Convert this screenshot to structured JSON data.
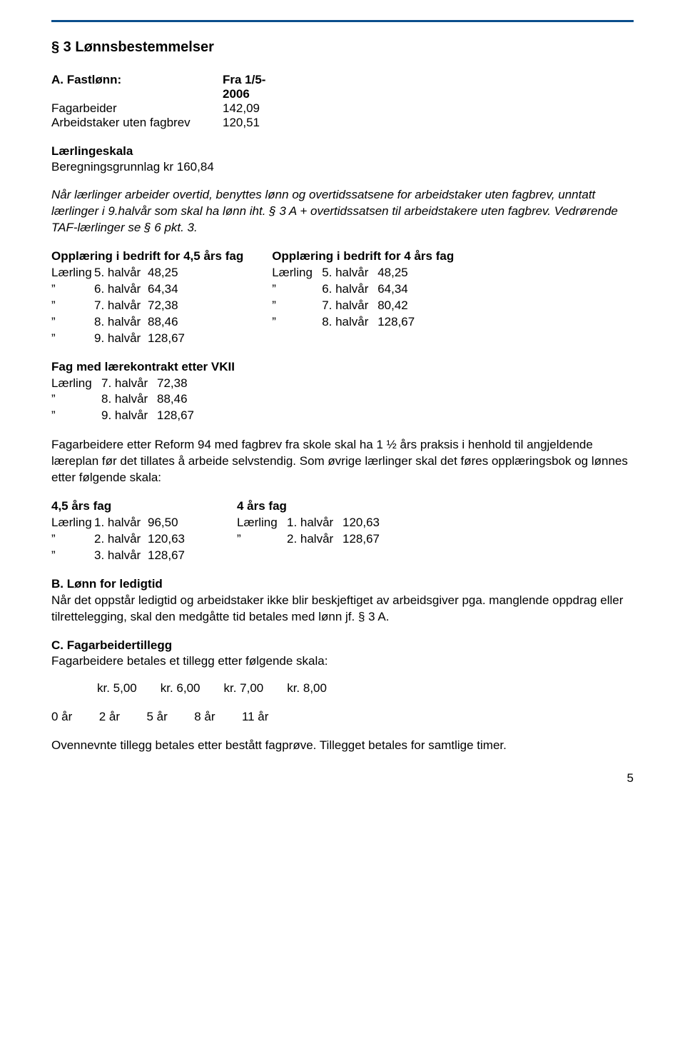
{
  "colors": {
    "rule": "#0a4e8c",
    "text": "#000000",
    "background": "#ffffff"
  },
  "typography": {
    "body_fontsize_pt": 13,
    "heading_fontsize_pt": 15,
    "font_family": "Arial"
  },
  "section_title": "§ 3 Lønnsbestemmelser",
  "fastlonn": {
    "heading_prefix": "A. Fastlønn:",
    "heading_suffix": "Fra 1/5-2006",
    "rows": [
      {
        "label": "Fagarbeider",
        "value": "142,09"
      },
      {
        "label": "Arbeidstaker uten fagbrev",
        "value": "120,51"
      }
    ]
  },
  "laerlingeskala": {
    "heading": "Lærlingeskala",
    "basis_line": "Beregningsgrunnlag kr 160,84"
  },
  "note_italic": "Når lærlinger arbeider overtid, benyttes lønn og overtidssatsene for arbeidstaker uten fagbrev, unntatt lærlinger i 9.halvår som skal ha lønn iht. § 3 A + overtidssatsen til arbeidstakere uten fagbrev. Vedrørende TAF-lærlinger se § 6 pkt. 3.",
  "training": {
    "left_heading": "Opplæring i bedrift for 4,5 års fag",
    "right_heading": "Opplæring i bedrift for 4 års fag",
    "left_rows": [
      {
        "p": "Lærling",
        "h": "5. halvår",
        "v": "48,25"
      },
      {
        "p": "”",
        "h": "6. halvår",
        "v": "64,34"
      },
      {
        "p": "”",
        "h": "7. halvår",
        "v": "72,38"
      },
      {
        "p": "”",
        "h": "8. halvår",
        "v": "88,46"
      },
      {
        "p": "”",
        "h": "9. halvår",
        "v": "128,67"
      }
    ],
    "right_rows": [
      {
        "p": "Lærling",
        "h": "5. halvår",
        "v": "48,25"
      },
      {
        "p": "”",
        "h": "6. halvår",
        "v": "64,34"
      },
      {
        "p": "”",
        "h": "7. halvår",
        "v": "80,42"
      },
      {
        "p": "”",
        "h": "8. halvår",
        "v": "128,67"
      }
    ]
  },
  "vkii": {
    "heading": "Fag med lærekontrakt etter VKII",
    "rows": [
      {
        "p": "Lærling",
        "h": "7. halvår",
        "v": "72,38"
      },
      {
        "p": "”",
        "h": "8. halvår",
        "v": "88,46"
      },
      {
        "p": "”",
        "h": "9. halvår",
        "v": "128,67"
      }
    ]
  },
  "reform94_para": "Fagarbeidere etter Reform 94 med fagbrev fra skole skal ha 1 ½ års praksis i henhold til angjeldende læreplan før det tillates å arbeide selvstendig. Som øvrige lærlinger skal det føres opplæringsbok og lønnes etter følgende skala:",
  "years_fag": {
    "left_heading": "4,5 års fag",
    "right_heading": "4 års fag",
    "left_rows": [
      {
        "p": "Lærling",
        "h": "1. halvår",
        "v": "96,50"
      },
      {
        "p": "”",
        "h": "2. halvår",
        "v": "120,63"
      },
      {
        "p": "”",
        "h": "3. halvår",
        "v": "128,67"
      }
    ],
    "right_rows": [
      {
        "p": "Lærling",
        "h": "1. halvår",
        "v": "120,63"
      },
      {
        "p": "”",
        "h": "2. halvår",
        "v": "128,67"
      }
    ]
  },
  "ledigtid": {
    "heading": "B. Lønn for ledigtid",
    "text": "Når det oppstår ledigtid og arbeidstaker ikke blir beskjeftiget av arbeidsgiver pga. manglende oppdrag eller tilrettelegging, skal den medgåtte tid betales med lønn jf. § 3 A."
  },
  "fagarbeidertillegg": {
    "heading": "C. Fagarbeidertillegg",
    "intro": "Fagarbeidere betales et tillegg etter følgende skala:",
    "amounts": [
      "kr. 5,00",
      "kr. 6,00",
      "kr. 7,00",
      "kr. 8,00"
    ],
    "years": [
      "0 år",
      "2 år",
      "5 år",
      "8 år",
      "11 år"
    ],
    "note": "Ovennevnte tillegg betales etter bestått fagprøve. Tillegget betales for samtlige timer."
  },
  "page_number": "5"
}
